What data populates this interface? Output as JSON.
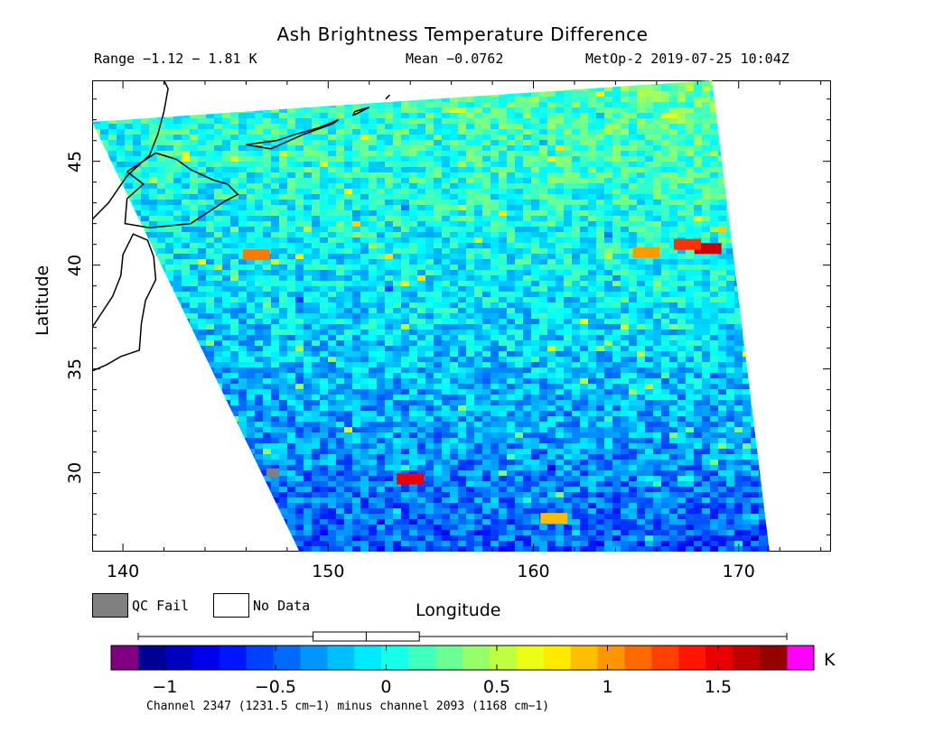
{
  "chart_data": {
    "type": "heatmap",
    "title": "Ash Brightness Temperature Difference",
    "range_text": "Range −1.12 − 1.81 K",
    "mean_text": "Mean −0.0762",
    "satellite_time": "MetOp-2 2019-07-25 10:04Z",
    "xlabel": "Longitude",
    "ylabel": "Latitude",
    "xlim": [
      138.5,
      174.5
    ],
    "ylim": [
      26.2,
      48.9
    ],
    "x_ticks": [
      140,
      150,
      160,
      170
    ],
    "y_ticks": [
      30,
      35,
      40,
      45
    ],
    "x_tick_labels": [
      "140",
      "150",
      "160",
      "170"
    ],
    "y_tick_labels": [
      "30",
      "35",
      "40",
      "45"
    ],
    "swath_corners_deg": {
      "top_left": [
        138.5,
        46.9
      ],
      "top_right": [
        168.7,
        48.9
      ],
      "bottom_left": [
        148.6,
        26.2
      ],
      "bottom_right": [
        171.5,
        26.2
      ]
    },
    "anomalies": [
      {
        "lon": 168.5,
        "lat": 40.8,
        "value": 1.6
      },
      {
        "lon": 167.5,
        "lat": 41.0,
        "value": 1.3
      },
      {
        "lon": 165.5,
        "lat": 40.6,
        "value": 1.0
      },
      {
        "lon": 147.3,
        "lat": 30.0,
        "value": "QC Fail"
      },
      {
        "lon": 154.0,
        "lat": 29.7,
        "value": 1.5
      },
      {
        "lon": 161.0,
        "lat": 27.8,
        "value": 0.9
      },
      {
        "lon": 146.5,
        "lat": 40.5,
        "value": 1.1
      }
    ],
    "regional_means": [
      {
        "region": "north",
        "value": 0.2
      },
      {
        "region": "center",
        "value": -0.1
      },
      {
        "region": "south",
        "value": -0.5
      }
    ],
    "colorbar": {
      "label": "K",
      "vmin": -1.12,
      "vmax": 1.81,
      "ticks": [
        -1,
        -0.5,
        0,
        0.5,
        1,
        1.5
      ],
      "tick_labels": [
        "−1",
        "−0.5",
        "0",
        "0.5",
        "1",
        "1.5"
      ],
      "boxplot": {
        "whisker_low": -1.12,
        "q1": -0.33,
        "median": -0.09,
        "q3": 0.15,
        "whisker_high": 1.81
      },
      "under_color": "#800080",
      "over_color": "#ff00ff"
    },
    "legend": [
      {
        "label": "QC Fail",
        "color": "#808080"
      },
      {
        "label": "No Data",
        "color": "#ffffff"
      }
    ],
    "caption": "Channel 2347 (1231.5 cm−1) minus channel 2093 (1168 cm−1)"
  }
}
